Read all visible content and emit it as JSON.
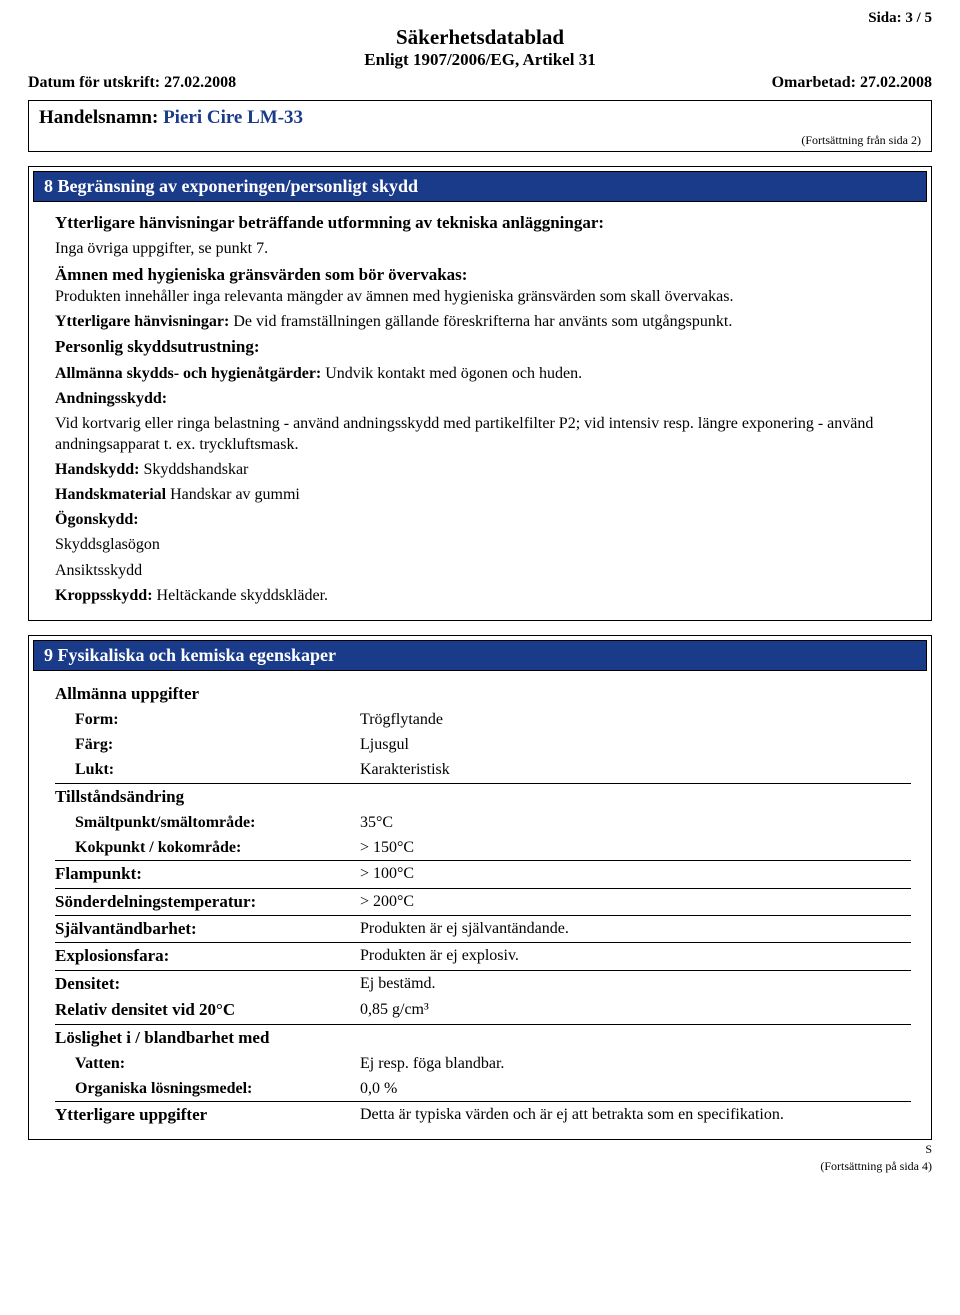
{
  "page_info": {
    "page_number": "Sida: 3 / 5",
    "doc_title": "Säkerhetsdatablad",
    "doc_subtitle": "Enligt 1907/2006/EG, Artikel 31",
    "print_date_label": "Datum för utskrift: ",
    "print_date": "27.02.2008",
    "revised_label": "Omarbetad: ",
    "revised_date": "27.02.2008",
    "product_label": "Handelsnamn: ",
    "product_name": "Pieri Cire LM-33",
    "cont_from": "(Fortsättning från sida 2)",
    "cont_next": "(Fortsättning på sida 4)",
    "s_mark": "S"
  },
  "section8": {
    "title": "8 Begränsning av exponeringen/personligt skydd",
    "p1_bold": "Ytterligare hänvisningar beträffande utformning av tekniska anläggningar:",
    "p2": "Inga övriga uppgifter, se punkt 7.",
    "p3_bold": "Ämnen med hygieniska gränsvärden som bör övervakas:",
    "p3_body": "Produkten innehåller inga relevanta mängder av ämnen med hygieniska gränsvärden som skall övervakas.",
    "p4_bold": "Ytterligare hänvisningar: ",
    "p4_body": "De vid framställningen gällande föreskrifterna har använts som utgångspunkt.",
    "p5_bold": "Personlig skyddsutrustning:",
    "p6_bold": "Allmänna skydds- och hygienåtgärder: ",
    "p6_body": "Undvik kontakt med ögonen och huden.",
    "p7_bold": "Andningsskydd:",
    "p7_body": "Vid kortvarig eller ringa belastning - använd andningsskydd med partikelfilter P2; vid intensiv resp. längre exponering - använd andningsapparat t. ex. tryckluftsmask.",
    "p8_bold": "Handskydd: ",
    "p8_body": "Skyddshandskar",
    "p9_bold": "Handskmaterial ",
    "p9_body": "Handskar av gummi",
    "p10_bold": "Ögonskydd:",
    "p11": "Skyddsglasögon",
    "p12": "Ansiktsskydd",
    "p13_bold": "Kroppsskydd: ",
    "p13_body": "Heltäckande skyddskläder."
  },
  "section9": {
    "title": "9 Fysikaliska och kemiska egenskaper",
    "group_general": "Allmänna uppgifter",
    "form_label": "Form:",
    "form_val": "Trögflytande",
    "color_label": "Färg:",
    "color_val": "Ljusgul",
    "odor_label": "Lukt:",
    "odor_val": "Karakteristisk",
    "group_state": "Tillståndsändring",
    "melt_label": "Smältpunkt/smältområde:",
    "melt_val": "35°C",
    "boil_label": "Kokpunkt / kokområde:",
    "boil_val": "> 150°C",
    "flash_label": "Flampunkt:",
    "flash_val": "> 100°C",
    "decomp_label": "Sönderdelningstemperatur:",
    "decomp_val": "> 200°C",
    "autoign_label": "Självantändbarhet:",
    "autoign_val": "Produkten är ej självantändande.",
    "explo_label": "Explosionsfara:",
    "explo_val": "Produkten är ej explosiv.",
    "dens_label": "Densitet:",
    "dens_val": "Ej bestämd.",
    "reldens_label": "Relativ densitet vid 20°C",
    "reldens_val": "0,85 g/cm³",
    "group_sol": "Löslighet i / blandbarhet med",
    "water_label": "Vatten:",
    "water_val": "Ej resp. föga blandbar.",
    "org_label": "Organiska lösningsmedel:",
    "org_val": "0,0 %",
    "extra_label": "Ytterligare uppgifter",
    "extra_val": "Detta är typiska värden och är ej att betrakta som en specifikation."
  }
}
